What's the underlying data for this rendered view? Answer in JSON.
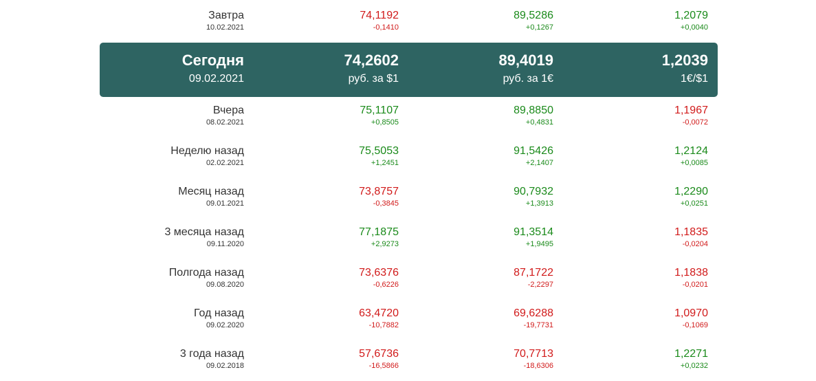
{
  "colors": {
    "up": "#1a8a1a",
    "down": "#d11a1a",
    "today_bg": "#2e6462",
    "text": "#333333"
  },
  "rows_before": [
    {
      "label": "Завтра",
      "date": "10.02.2021",
      "usd": {
        "value": "74,1192",
        "change": "-0,1410",
        "dir": "down"
      },
      "eur": {
        "value": "89,5286",
        "change": "+0,1267",
        "dir": "up"
      },
      "eurusd": {
        "value": "1,2079",
        "change": "+0,0040",
        "dir": "up"
      }
    }
  ],
  "today": {
    "label": "Сегодня",
    "date": "09.02.2021",
    "usd": {
      "value": "74,2602",
      "unit": "руб. за $1"
    },
    "eur": {
      "value": "89,4019",
      "unit": "руб. за 1€"
    },
    "eurusd": {
      "value": "1,2039",
      "unit": "1€/$1"
    }
  },
  "rows_after": [
    {
      "label": "Вчера",
      "date": "08.02.2021",
      "usd": {
        "value": "75,1107",
        "change": "+0,8505",
        "dir": "up"
      },
      "eur": {
        "value": "89,8850",
        "change": "+0,4831",
        "dir": "up"
      },
      "eurusd": {
        "value": "1,1967",
        "change": "-0,0072",
        "dir": "down"
      }
    },
    {
      "label": "Неделю назад",
      "date": "02.02.2021",
      "usd": {
        "value": "75,5053",
        "change": "+1,2451",
        "dir": "up"
      },
      "eur": {
        "value": "91,5426",
        "change": "+2,1407",
        "dir": "up"
      },
      "eurusd": {
        "value": "1,2124",
        "change": "+0,0085",
        "dir": "up"
      }
    },
    {
      "label": "Месяц назад",
      "date": "09.01.2021",
      "usd": {
        "value": "73,8757",
        "change": "-0,3845",
        "dir": "down"
      },
      "eur": {
        "value": "90,7932",
        "change": "+1,3913",
        "dir": "up"
      },
      "eurusd": {
        "value": "1,2290",
        "change": "+0,0251",
        "dir": "up"
      }
    },
    {
      "label": "3 месяца назад",
      "date": "09.11.2020",
      "usd": {
        "value": "77,1875",
        "change": "+2,9273",
        "dir": "up"
      },
      "eur": {
        "value": "91,3514",
        "change": "+1,9495",
        "dir": "up"
      },
      "eurusd": {
        "value": "1,1835",
        "change": "-0,0204",
        "dir": "down"
      }
    },
    {
      "label": "Полгода назад",
      "date": "09.08.2020",
      "usd": {
        "value": "73,6376",
        "change": "-0,6226",
        "dir": "down"
      },
      "eur": {
        "value": "87,1722",
        "change": "-2,2297",
        "dir": "down"
      },
      "eurusd": {
        "value": "1,1838",
        "change": "-0,0201",
        "dir": "down"
      }
    },
    {
      "label": "Год назад",
      "date": "09.02.2020",
      "usd": {
        "value": "63,4720",
        "change": "-10,7882",
        "dir": "down"
      },
      "eur": {
        "value": "69,6288",
        "change": "-19,7731",
        "dir": "down"
      },
      "eurusd": {
        "value": "1,0970",
        "change": "-0,1069",
        "dir": "down"
      }
    },
    {
      "label": "3 года назад",
      "date": "09.02.2018",
      "usd": {
        "value": "57,6736",
        "change": "-16,5866",
        "dir": "down"
      },
      "eur": {
        "value": "70,7713",
        "change": "-18,6306",
        "dir": "down"
      },
      "eurusd": {
        "value": "1,2271",
        "change": "+0,0232",
        "dir": "up"
      }
    }
  ]
}
